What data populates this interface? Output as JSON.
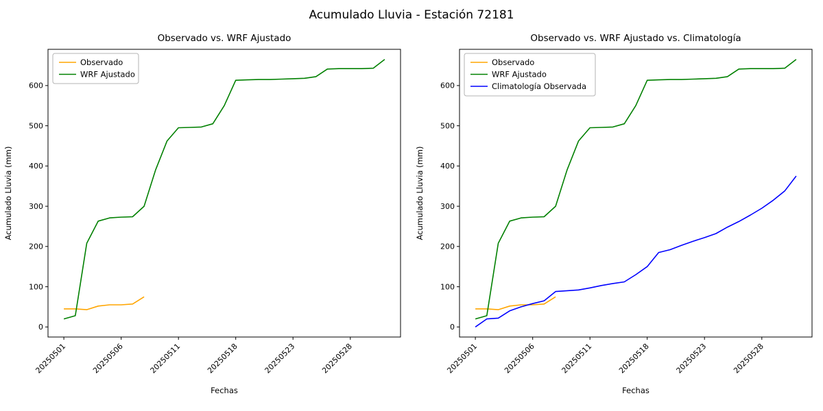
{
  "figure": {
    "background": "#ffffff"
  },
  "chart_data": {
    "type": "line",
    "suptitle": "Acumulado Lluvia - Estación 72181",
    "xlabel": "Fechas",
    "ylabel": "Acumulado Lluvia (mm)",
    "ylim": [
      -25,
      690
    ],
    "yticks": [
      0,
      100,
      200,
      300,
      400,
      500,
      600
    ],
    "grid": false,
    "legend_position": "upper left",
    "x": [
      "20250501",
      "20250502",
      "20250503",
      "20250504",
      "20250505",
      "20250506",
      "20250507",
      "20250508",
      "20250509",
      "20250510",
      "20250511",
      "20250513",
      "20250514",
      "20250516",
      "20250517",
      "20250518",
      "20250519",
      "20250520",
      "20250521",
      "20250522",
      "20250523",
      "20250524",
      "20250525",
      "20250526",
      "20250527",
      "20250528",
      "20250529",
      "20250530",
      "20250531"
    ],
    "xtick_indices": [
      0,
      5,
      10,
      15,
      20,
      25
    ],
    "xtick_labels": [
      "20250501",
      "20250506",
      "20250511",
      "20250518",
      "20250523",
      "20250528"
    ],
    "series": [
      {
        "name": "Observado",
        "color": "#FFA500",
        "values": [
          45,
          45,
          43,
          52,
          55,
          55,
          57,
          75
        ]
      },
      {
        "name": "WRF Ajustado",
        "color": "#008000",
        "values": [
          20,
          28,
          208,
          263,
          271,
          273,
          274,
          300,
          390,
          462,
          495,
          496,
          497,
          505,
          550,
          613,
          614,
          615,
          615,
          616,
          617,
          618,
          622,
          641,
          642,
          642,
          642,
          643,
          665
        ]
      },
      {
        "name": "Climatología Observada",
        "color": "#0000FF",
        "values": [
          0,
          20,
          22,
          40,
          50,
          58,
          65,
          88,
          90,
          92,
          97,
          103,
          108,
          112,
          130,
          150,
          185,
          192,
          203,
          213,
          222,
          232,
          248,
          262,
          278,
          295,
          315,
          338,
          375
        ]
      }
    ],
    "subplots": [
      {
        "title": "Observado vs. WRF Ajustado",
        "series": [
          "Observado",
          "WRF Ajustado"
        ]
      },
      {
        "title": "Observado vs. WRF Ajustado vs. Climatología",
        "series": [
          "Observado",
          "WRF Ajustado",
          "Climatología Observada"
        ]
      }
    ]
  }
}
